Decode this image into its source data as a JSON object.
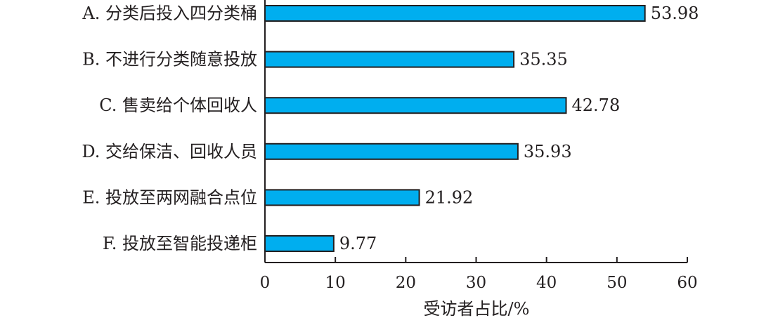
{
  "chart_data": {
    "type": "bar",
    "orientation": "horizontal",
    "categories": [
      "A. 分类后投入四分类桶",
      "B. 不进行分类随意投放",
      "C. 售卖给个体回收人",
      "D. 交给保洁、回收人员",
      "E. 投放至两网融合点位",
      "F. 投放至智能投递柜"
    ],
    "values": [
      53.98,
      35.35,
      42.78,
      35.93,
      21.92,
      9.77
    ],
    "value_labels": [
      "53.98",
      "35.35",
      "42.78",
      "35.93",
      "21.92",
      "9.77"
    ],
    "xlabel": "受访者占比/%",
    "xlim": [
      0,
      60
    ],
    "xticks": [
      0,
      10,
      20,
      30,
      40,
      50,
      60
    ],
    "bar_color": "#00aeef",
    "edge_color": "#231f20",
    "grid": false,
    "legend": "none"
  }
}
